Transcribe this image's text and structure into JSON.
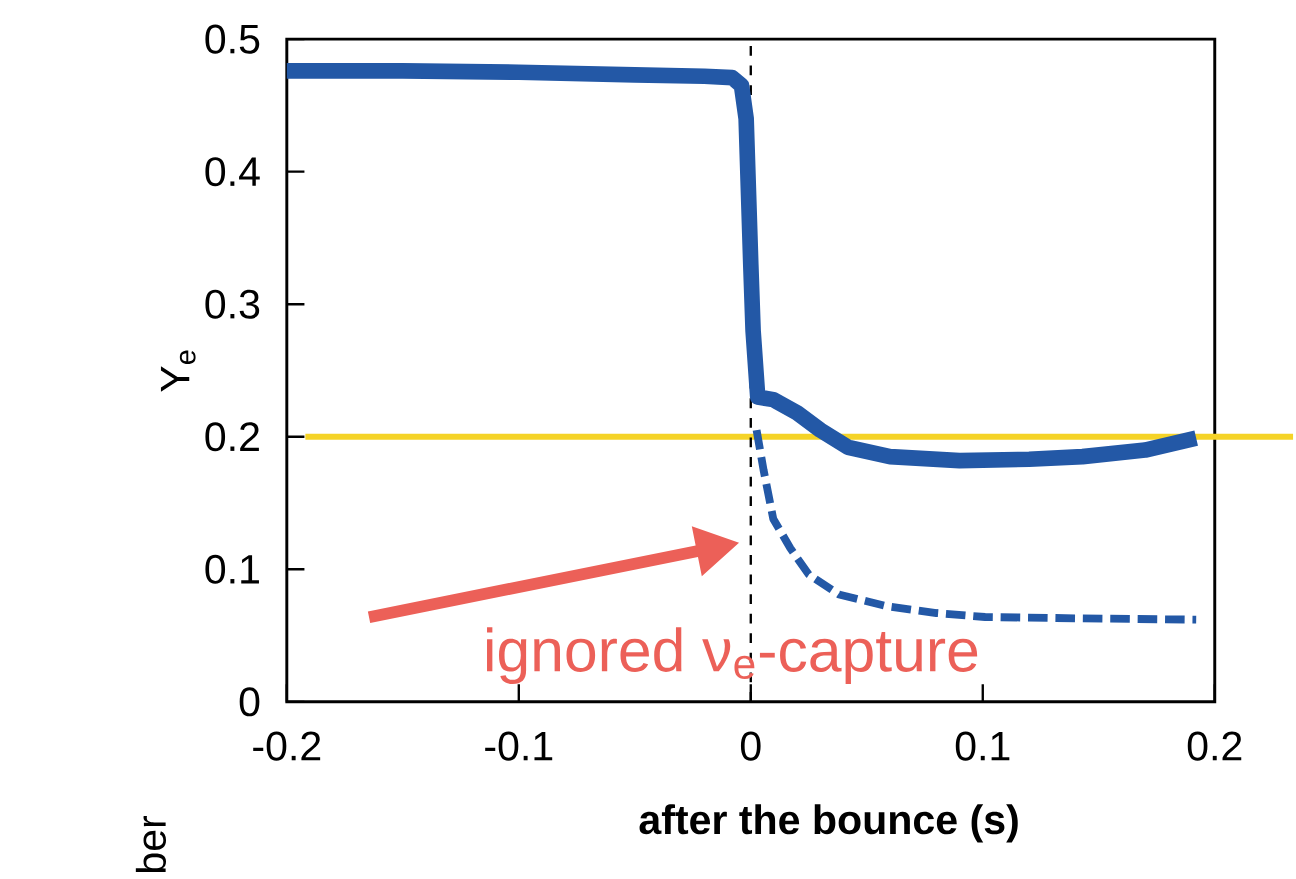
{
  "chart_data": {
    "type": "line",
    "xlabel": "after the bounce (s)",
    "ylabel": "Y$_{e}$",
    "xlim": [
      -0.2,
      0.2
    ],
    "ylim": [
      0,
      0.5
    ],
    "xticks": [
      -0.2,
      -0.1,
      0,
      0.1,
      0.2
    ],
    "yticks": [
      0,
      0.1,
      0.2,
      0.3,
      0.4,
      0.5
    ],
    "marker": "none",
    "series": [
      {
        "color": "#2358a6",
        "line_style": "solid",
        "x": [
          -0.2,
          -0.15,
          -0.1,
          -0.05,
          -0.02,
          -0.008,
          -0.004,
          -0.002,
          0.0,
          0.001,
          0.003,
          0.0097,
          0.02,
          0.03,
          0.042,
          0.06,
          0.09,
          0.12,
          0.143,
          0.17,
          0.192
        ],
        "values": [
          0.476,
          0.476,
          0.475,
          0.473,
          0.472,
          0.471,
          0.465,
          0.44,
          0.33,
          0.28,
          0.23,
          0.228,
          0.218,
          0.205,
          0.192,
          0.185,
          0.182,
          0.183,
          0.185,
          0.19,
          0.199
        ]
      },
      {
        "color": "#2358a6",
        "line_style": "dashed",
        "x": [
          0.0025,
          0.0055,
          0.0097,
          0.017,
          0.025,
          0.038,
          0.059,
          0.08,
          0.101,
          0.14,
          0.192
        ],
        "values": [
          0.205,
          0.175,
          0.138,
          0.116,
          0.096,
          0.081,
          0.072,
          0.067,
          0.064,
          0.063,
          0.062
        ]
      }
    ],
    "ref_lines": [
      {
        "axis": "y",
        "value": 0.2,
        "color": "#f5d327",
        "line_style": "solid"
      },
      {
        "axis": "x",
        "value": 0,
        "color": "#000000",
        "line_style": "dashed"
      }
    ],
    "annotations": [
      {
        "text": "ignored ν$_{e}$-capture",
        "x": 0.0,
        "y": 0.12
      },
      "ber"
    ]
  }
}
